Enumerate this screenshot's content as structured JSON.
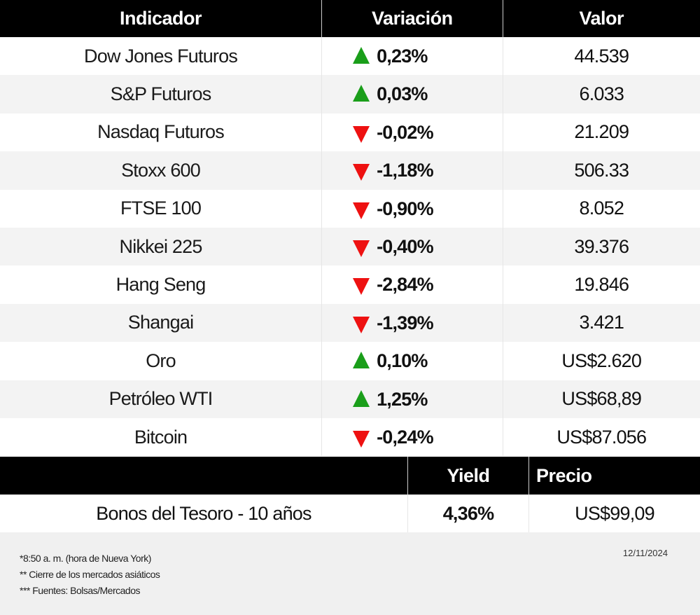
{
  "header": {
    "indicator": "Indicador",
    "variation": "Variación",
    "value": "Valor"
  },
  "colors": {
    "up": "#1a9e1a",
    "down": "#ee1111",
    "header_bg": "#000000",
    "stripe": "#f3f3f3"
  },
  "rows": [
    {
      "name": "Dow Jones Futuros",
      "dir": "up",
      "icon": "triangle-up-icon",
      "variation": "0,23%",
      "value": "44.539"
    },
    {
      "name": "S&P Futuros",
      "dir": "up",
      "icon": "triangle-up-icon",
      "variation": "0,03%",
      "value": "6.033"
    },
    {
      "name": "Nasdaq Futuros",
      "dir": "down",
      "icon": "triangle-down-icon",
      "variation": "-0,02%",
      "value": "21.209"
    },
    {
      "name": "Stoxx 600",
      "dir": "down",
      "icon": "triangle-down-icon",
      "variation": "-1,18%",
      "value": "506.33"
    },
    {
      "name": "FTSE 100",
      "dir": "down",
      "icon": "triangle-down-icon",
      "variation": "-0,90%",
      "value": "8.052"
    },
    {
      "name": "Nikkei 225",
      "dir": "down",
      "icon": "triangle-down-icon",
      "variation": "-0,40%",
      "value": "39.376"
    },
    {
      "name": "Hang Seng",
      "dir": "down",
      "icon": "triangle-down-icon",
      "variation": "-2,84%",
      "value": "19.846"
    },
    {
      "name": "Shangai",
      "dir": "down",
      "icon": "triangle-down-icon",
      "variation": "-1,39%",
      "value": "3.421"
    },
    {
      "name": "Oro",
      "dir": "up",
      "icon": "triangle-up-icon",
      "variation": "0,10%",
      "value": "US$2.620"
    },
    {
      "name": "Petróleo WTI",
      "dir": "up",
      "icon": "triangle-up-icon",
      "variation": "1,25%",
      "value": "US$68,89"
    },
    {
      "name": "Bitcoin",
      "dir": "down",
      "icon": "triangle-down-icon",
      "variation": "-0,24%",
      "value": "US$87.056"
    }
  ],
  "bonds": {
    "header": {
      "yield": "Yield",
      "price": "Precio"
    },
    "name": "Bonos del Tesoro - 10 años",
    "yield": "4,36%",
    "price": "US$99,09"
  },
  "footer": {
    "notes": [
      "*8:50 a. m. (hora de Nueva York)",
      " ** Cierre de los mercados asiáticos",
      "*** Fuentes:  Bolsas/Mercados"
    ],
    "date": "12/11/2024"
  }
}
